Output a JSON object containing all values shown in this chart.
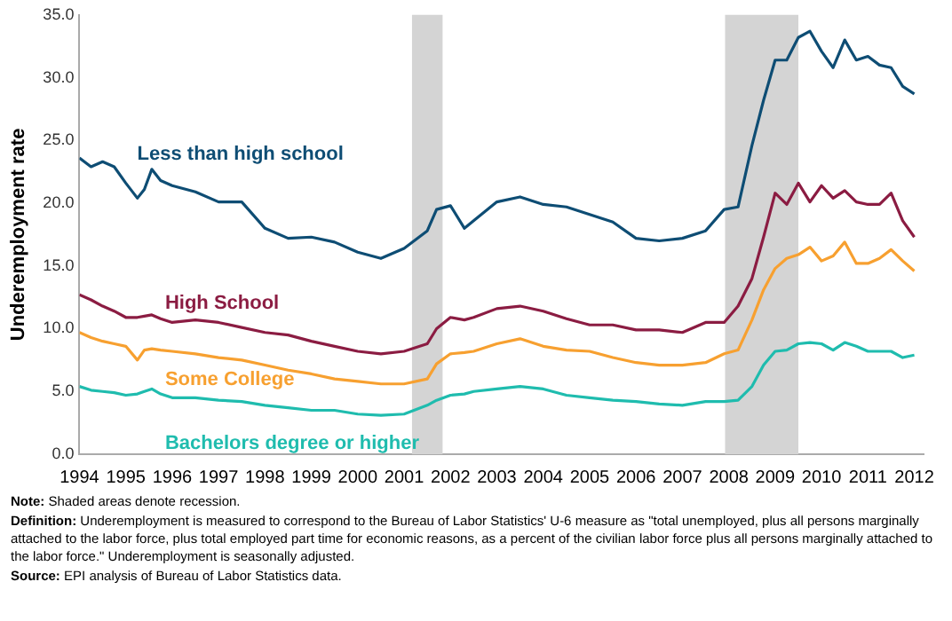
{
  "chart_data": {
    "type": "line",
    "ylabel": "Underemployment rate",
    "x": [
      1994,
      1994.25,
      1994.5,
      1994.75,
      1995,
      1995.25,
      1995.4,
      1995.56,
      1995.75,
      1996,
      1996.5,
      1997,
      1997.5,
      1998,
      1998.5,
      1999,
      1999.5,
      2000,
      2000.5,
      2001,
      2001.5,
      2001.7,
      2002,
      2002.3,
      2002.5,
      2003,
      2003.5,
      2004,
      2004.5,
      2005,
      2005.5,
      2006,
      2006.5,
      2007,
      2007.5,
      2007.9,
      2008.2,
      2008.5,
      2008.75,
      2009,
      2009.25,
      2009.5,
      2009.75,
      2010,
      2010.25,
      2010.5,
      2010.75,
      2011,
      2011.25,
      2011.5,
      2011.75,
      2012
    ],
    "series": [
      {
        "name": "Less than high school",
        "color": "#0e4d74",
        "values": [
          23.6,
          22.9,
          23.3,
          22.9,
          21.6,
          20.4,
          21.1,
          22.7,
          21.8,
          21.4,
          20.9,
          20.1,
          20.1,
          18.0,
          17.2,
          17.3,
          16.9,
          16.1,
          15.6,
          16.4,
          17.8,
          19.5,
          19.8,
          18.0,
          18.6,
          20.1,
          20.5,
          19.9,
          19.7,
          19.1,
          18.5,
          17.2,
          17.0,
          17.2,
          17.8,
          19.5,
          19.7,
          24.6,
          28.2,
          31.4,
          31.4,
          33.2,
          33.7,
          32.1,
          30.8,
          33.0,
          31.4,
          31.7,
          31.0,
          30.8,
          29.3,
          28.7
        ]
      },
      {
        "name": "High School",
        "color": "#8b1c42",
        "values": [
          12.7,
          12.3,
          11.8,
          11.4,
          10.9,
          10.9,
          11.0,
          11.1,
          10.8,
          10.5,
          10.7,
          10.5,
          10.1,
          9.7,
          9.5,
          9.0,
          8.6,
          8.2,
          8.0,
          8.2,
          8.8,
          10.0,
          10.9,
          10.7,
          10.9,
          11.6,
          11.8,
          11.4,
          10.8,
          10.3,
          10.3,
          9.9,
          9.9,
          9.7,
          10.5,
          10.5,
          11.8,
          14.0,
          17.3,
          20.8,
          19.9,
          21.6,
          20.1,
          21.4,
          20.4,
          21.0,
          20.1,
          19.9,
          19.9,
          20.8,
          18.6,
          17.3
        ]
      },
      {
        "name": "Some College",
        "color": "#f7a030",
        "values": [
          9.7,
          9.3,
          9.0,
          8.8,
          8.6,
          7.5,
          8.3,
          8.4,
          8.3,
          8.2,
          8.0,
          7.7,
          7.5,
          7.1,
          6.7,
          6.4,
          6.0,
          5.8,
          5.6,
          5.6,
          6.0,
          7.2,
          8.0,
          8.1,
          8.2,
          8.8,
          9.2,
          8.6,
          8.3,
          8.2,
          7.7,
          7.3,
          7.1,
          7.1,
          7.3,
          8.0,
          8.3,
          10.7,
          13.1,
          14.8,
          15.6,
          15.9,
          16.5,
          15.4,
          15.8,
          16.9,
          15.2,
          15.2,
          15.6,
          16.3,
          15.4,
          14.6
        ]
      },
      {
        "name": "Bachelors degree or higher",
        "color": "#1fbcae",
        "values": [
          5.4,
          5.1,
          5.0,
          4.9,
          4.7,
          4.8,
          5.0,
          5.2,
          4.8,
          4.5,
          4.5,
          4.3,
          4.2,
          3.9,
          3.7,
          3.5,
          3.5,
          3.2,
          3.1,
          3.2,
          3.9,
          4.3,
          4.7,
          4.8,
          5.0,
          5.2,
          5.4,
          5.2,
          4.7,
          4.5,
          4.3,
          4.2,
          4.0,
          3.9,
          4.2,
          4.2,
          4.3,
          5.4,
          7.1,
          8.2,
          8.3,
          8.8,
          8.9,
          8.8,
          8.3,
          8.9,
          8.6,
          8.2,
          8.2,
          8.2,
          7.7,
          7.9
        ]
      }
    ],
    "xlim": [
      1994,
      2012.2
    ],
    "xticks": [
      1994,
      1995,
      1996,
      1997,
      1998,
      1999,
      2000,
      2001,
      2002,
      2003,
      2004,
      2005,
      2006,
      2007,
      2008,
      2009,
      2010,
      2011,
      2012
    ],
    "ylim": [
      0,
      35
    ],
    "yticks": [
      {
        "value": 0,
        "label": "0.0"
      },
      {
        "value": 5,
        "label": "5.0"
      },
      {
        "value": 10,
        "label": "10.0"
      },
      {
        "value": 15,
        "label": "15.0"
      },
      {
        "value": 20,
        "label": "20.0"
      },
      {
        "value": 25,
        "label": "25.0"
      },
      {
        "value": 30,
        "label": "30.0"
      },
      {
        "value": 35,
        "label": "35.0"
      }
    ],
    "bands": [
      {
        "axis": "x",
        "from": 2001.17,
        "to": 2001.83,
        "color": "#d4d4d4"
      },
      {
        "axis": "x",
        "from": 2007.92,
        "to": 2009.5,
        "color": "#d4d4d4"
      }
    ],
    "grid": false,
    "legend": false,
    "marker": "none",
    "line_style": "solid",
    "annotations": [
      "Note: Shaded areas denote recession.",
      "Definition: Underemployment is measured to correspond to the Bureau of Labor Statistics' U-6 measure as \"total unemployed, plus all persons marginally attached to the labor force, plus total employed part time for economic reasons, as a percent of the civilian labor force plus all persons marginally attached to the labor force.\"  Underemployment is seasonally adjusted.",
      "Source: EPI analysis of Bureau of Labor Statistics data."
    ]
  }
}
